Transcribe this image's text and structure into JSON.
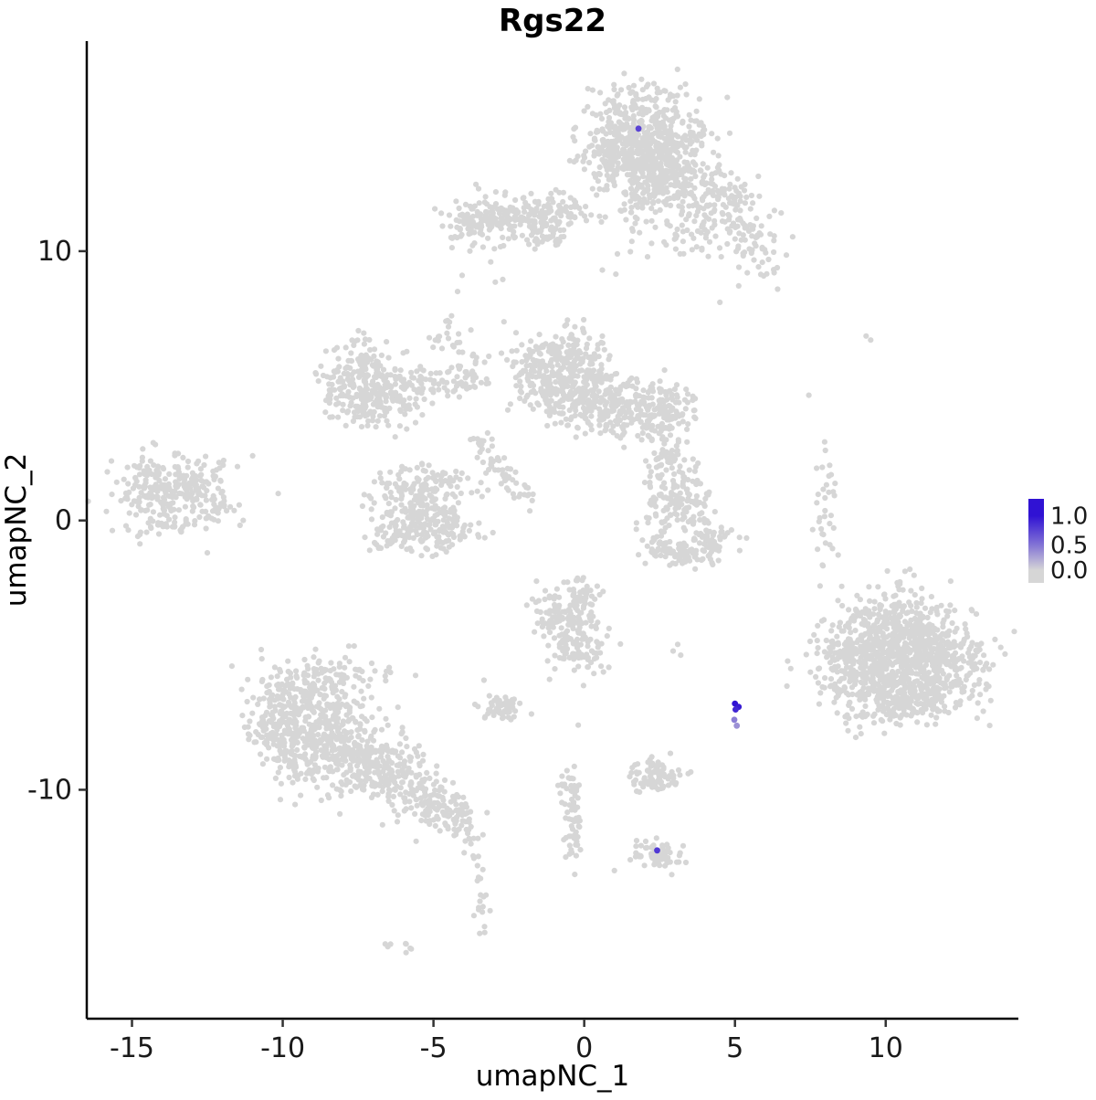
{
  "title": "Rgs22",
  "chart_data": {
    "type": "scatter",
    "title": "Rgs22",
    "xlabel": "umapNC_1",
    "ylabel": "umapNC_2",
    "xlim": [
      -16.5,
      14.4
    ],
    "ylim": [
      -18.5,
      17.8
    ],
    "x_ticks": [
      -15,
      -10,
      -5,
      0,
      5,
      10
    ],
    "y_ticks": [
      -10,
      0,
      10
    ],
    "grid": false,
    "point_color_low": "#D6D6D6",
    "point_color_high": "#3012D3",
    "seed": 42,
    "legend": {
      "position": "right",
      "labels": [
        "1.0",
        "0.5",
        "0.0"
      ],
      "values": [
        1.0,
        0.5,
        0.0
      ],
      "offsets": [
        0.2,
        0.55,
        0.85
      ]
    },
    "clusters": [
      {
        "cx": 1.9,
        "cy": 14.3,
        "sx": 1.05,
        "sy": 0.85,
        "n": 480
      },
      {
        "cx": 1.2,
        "cy": 13.4,
        "sx": 0.6,
        "sy": 0.6,
        "n": 120
      },
      {
        "cx": 2.8,
        "cy": 13.0,
        "sx": 0.6,
        "sy": 0.6,
        "n": 120
      },
      {
        "cx": 2.3,
        "cy": 12.2,
        "sx": 0.5,
        "sy": 0.5,
        "n": 70
      },
      {
        "cx": 3.9,
        "cy": 12.3,
        "sx": 0.8,
        "sy": 0.5,
        "n": 90
      },
      {
        "cx": 4.9,
        "cy": 11.3,
        "sx": 0.7,
        "sy": 0.7,
        "n": 90
      },
      {
        "cx": 5.6,
        "cy": 10.0,
        "sx": 0.5,
        "sy": 0.7,
        "n": 45
      },
      {
        "cx": 1.6,
        "cy": 11.3,
        "sx": 0.35,
        "sy": 0.9,
        "n": 25
      },
      {
        "cx": 3.2,
        "cy": 10.7,
        "sx": 0.6,
        "sy": 0.5,
        "n": 30
      },
      {
        "cx": -2.4,
        "cy": 11.2,
        "sx": 1.05,
        "sy": 0.45,
        "n": 200
      },
      {
        "cx": -3.6,
        "cy": 10.9,
        "sx": 0.4,
        "sy": 0.35,
        "n": 45
      },
      {
        "cx": -0.9,
        "cy": 11.6,
        "sx": 0.5,
        "sy": 0.35,
        "n": 45
      },
      {
        "cx": -1.3,
        "cy": 10.6,
        "sx": 0.4,
        "sy": 0.3,
        "n": 30
      },
      {
        "cx": -1.1,
        "cy": 5.5,
        "sx": 0.75,
        "sy": 0.7,
        "n": 240
      },
      {
        "cx": 0.3,
        "cy": 4.5,
        "sx": 0.85,
        "sy": 0.6,
        "n": 210
      },
      {
        "cx": -0.4,
        "cy": 6.3,
        "sx": 0.5,
        "sy": 0.4,
        "n": 60
      },
      {
        "cx": 1.4,
        "cy": 4.0,
        "sx": 0.5,
        "sy": 0.45,
        "n": 80
      },
      {
        "cx": 2.6,
        "cy": 4.1,
        "sx": 0.55,
        "sy": 0.55,
        "n": 130
      },
      {
        "cx": -7.5,
        "cy": 5.5,
        "sx": 0.65,
        "sy": 0.6,
        "n": 130
      },
      {
        "cx": -6.4,
        "cy": 4.7,
        "sx": 0.7,
        "sy": 0.5,
        "n": 110
      },
      {
        "cx": -7.4,
        "cy": 4.3,
        "sx": 0.5,
        "sy": 0.4,
        "n": 60
      },
      {
        "cx": -8.2,
        "cy": 4.8,
        "sx": 0.3,
        "sy": 0.4,
        "n": 30
      },
      {
        "cx": -5.1,
        "cy": 5.1,
        "sx": 0.7,
        "sy": 0.35,
        "n": 45
      },
      {
        "cx": -3.9,
        "cy": 5.4,
        "sx": 0.5,
        "sy": 0.35,
        "n": 35
      },
      {
        "cx": -4.6,
        "cy": 6.8,
        "sx": 0.3,
        "sy": 0.35,
        "n": 20
      },
      {
        "cx": -14.1,
        "cy": 1.0,
        "sx": 0.75,
        "sy": 0.7,
        "n": 190
      },
      {
        "cx": -12.8,
        "cy": 1.5,
        "sx": 0.55,
        "sy": 0.45,
        "n": 70
      },
      {
        "cx": -12.2,
        "cy": 0.4,
        "sx": 0.4,
        "sy": 0.35,
        "n": 30
      },
      {
        "cx": -13.6,
        "cy": -0.2,
        "sx": 0.5,
        "sy": 0.25,
        "n": 20
      },
      {
        "cx": -5.8,
        "cy": 0.5,
        "sx": 0.7,
        "sy": 0.6,
        "n": 150
      },
      {
        "cx": -4.7,
        "cy": -0.3,
        "sx": 0.6,
        "sy": 0.5,
        "n": 110
      },
      {
        "cx": -5.1,
        "cy": 1.5,
        "sx": 0.75,
        "sy": 0.3,
        "n": 55
      },
      {
        "cx": -6.3,
        "cy": -0.7,
        "sx": 0.4,
        "sy": 0.3,
        "n": 35
      },
      {
        "cx": -3.4,
        "cy": 2.8,
        "sx": 0.25,
        "sy": 0.3,
        "n": 16
      },
      {
        "cx": -2.9,
        "cy": 2.1,
        "sx": 0.25,
        "sy": 0.3,
        "n": 16
      },
      {
        "cx": -2.4,
        "cy": 1.4,
        "sx": 0.25,
        "sy": 0.3,
        "n": 14
      },
      {
        "cx": -1.9,
        "cy": 0.9,
        "sx": 0.3,
        "sy": 0.3,
        "n": 12
      },
      {
        "cx": 2.9,
        "cy": 2.0,
        "sx": 0.45,
        "sy": 0.4,
        "n": 55
      },
      {
        "cx": 3.0,
        "cy": 0.7,
        "sx": 0.55,
        "sy": 0.6,
        "n": 120
      },
      {
        "cx": 2.6,
        "cy": -0.9,
        "sx": 0.35,
        "sy": 0.3,
        "n": 40
      },
      {
        "cx": 3.4,
        "cy": -1.2,
        "sx": 0.45,
        "sy": 0.25,
        "n": 55
      },
      {
        "cx": 4.2,
        "cy": -0.7,
        "sx": 0.35,
        "sy": 0.35,
        "n": 50
      },
      {
        "cx": 8.0,
        "cy": 0.3,
        "sx": 0.22,
        "sy": 1.3,
        "n": 34
      },
      {
        "cx": 10.3,
        "cy": -4.3,
        "sx": 1.15,
        "sy": 0.85,
        "n": 430
      },
      {
        "cx": 11.6,
        "cy": -5.3,
        "sx": 0.9,
        "sy": 0.8,
        "n": 340
      },
      {
        "cx": 9.5,
        "cy": -6.0,
        "sx": 0.8,
        "sy": 0.75,
        "n": 240
      },
      {
        "cx": 10.9,
        "cy": -6.7,
        "sx": 0.8,
        "sy": 0.5,
        "n": 140
      },
      {
        "cx": 8.6,
        "cy": -5.0,
        "sx": 0.4,
        "sy": 0.6,
        "n": 60
      },
      {
        "cx": -0.6,
        "cy": -3.5,
        "sx": 0.6,
        "sy": 0.5,
        "n": 120
      },
      {
        "cx": -0.2,
        "cy": -4.7,
        "sx": 0.5,
        "sy": 0.5,
        "n": 90
      },
      {
        "cx": -0.1,
        "cy": -2.7,
        "sx": 0.3,
        "sy": 0.3,
        "n": 30
      },
      {
        "cx": -2.7,
        "cy": -6.9,
        "sx": 0.42,
        "sy": 0.3,
        "n": 55
      },
      {
        "cx": -9.2,
        "cy": -7.0,
        "sx": 0.9,
        "sy": 0.8,
        "n": 270
      },
      {
        "cx": -8.1,
        "cy": -8.5,
        "sx": 0.9,
        "sy": 0.8,
        "n": 270
      },
      {
        "cx": -9.7,
        "cy": -8.7,
        "sx": 0.5,
        "sy": 0.5,
        "n": 80
      },
      {
        "cx": -8.6,
        "cy": -5.7,
        "sx": 0.9,
        "sy": 0.45,
        "n": 70
      },
      {
        "cx": -6.7,
        "cy": -9.2,
        "sx": 0.8,
        "sy": 0.55,
        "n": 150
      },
      {
        "cx": -5.4,
        "cy": -10.2,
        "sx": 0.6,
        "sy": 0.45,
        "n": 100
      },
      {
        "cx": -4.5,
        "cy": -11.0,
        "sx": 0.4,
        "sy": 0.35,
        "n": 55
      },
      {
        "cx": -10.4,
        "cy": -7.6,
        "sx": 0.4,
        "sy": 0.5,
        "n": 50
      },
      {
        "cx": -3.9,
        "cy": -11.8,
        "sx": 0.2,
        "sy": 0.3,
        "n": 14
      },
      {
        "cx": -3.5,
        "cy": -12.6,
        "sx": 0.15,
        "sy": 0.4,
        "n": 10
      },
      {
        "cx": -3.4,
        "cy": -14.3,
        "sx": 0.12,
        "sy": 0.55,
        "n": 12
      },
      {
        "cx": -6.2,
        "cy": -15.9,
        "sx": 0.3,
        "sy": 0.1,
        "n": 8
      },
      {
        "cx": 2.3,
        "cy": -9.5,
        "sx": 0.45,
        "sy": 0.3,
        "n": 85
      },
      {
        "cx": -0.35,
        "cy": -11.1,
        "sx": 0.16,
        "sy": 0.85,
        "n": 55
      },
      {
        "cx": -0.55,
        "cy": -9.9,
        "sx": 0.2,
        "sy": 0.25,
        "n": 14
      },
      {
        "cx": 2.35,
        "cy": -12.4,
        "sx": 0.42,
        "sy": 0.28,
        "n": 65
      }
    ],
    "singles": [
      [
        -2.95,
        8.85
      ],
      [
        -2.7,
        8.95
      ],
      [
        -3.1,
        9.6
      ],
      [
        9.35,
        6.85
      ],
      [
        9.5,
        6.7
      ],
      [
        7.45,
        4.65
      ],
      [
        -11.0,
        2.4
      ],
      [
        -10.15,
        1.0
      ],
      [
        -11.5,
        2.0
      ],
      [
        -4.4,
        7.6
      ],
      [
        -4.2,
        8.5
      ],
      [
        -4.05,
        9.1
      ],
      [
        0.6,
        9.3
      ],
      [
        1.1,
        9.9
      ],
      [
        2.95,
        -4.85
      ],
      [
        3.2,
        -5.0
      ],
      [
        3.1,
        -4.6
      ],
      [
        -1.15,
        -5.9
      ],
      [
        -0.2,
        -7.6
      ],
      [
        4.5,
        8.1
      ],
      [
        6.3,
        9.2
      ],
      [
        8.0,
        2.6
      ],
      [
        -3.3,
        -15.3
      ],
      [
        1.0,
        -13.0
      ],
      [
        -12.5,
        -1.2
      ]
    ],
    "expression_points": [
      {
        "x": 1.8,
        "y": 14.55,
        "v": 0.75
      },
      {
        "x": 5.0,
        "y": -6.8,
        "v": 1.0
      },
      {
        "x": 5.12,
        "y": -6.92,
        "v": 0.95
      },
      {
        "x": 5.02,
        "y": -7.02,
        "v": 0.9
      },
      {
        "x": 4.98,
        "y": -7.4,
        "v": 0.45
      },
      {
        "x": 5.06,
        "y": -7.62,
        "v": 0.35
      },
      {
        "x": 2.42,
        "y": -12.25,
        "v": 0.8
      }
    ]
  }
}
